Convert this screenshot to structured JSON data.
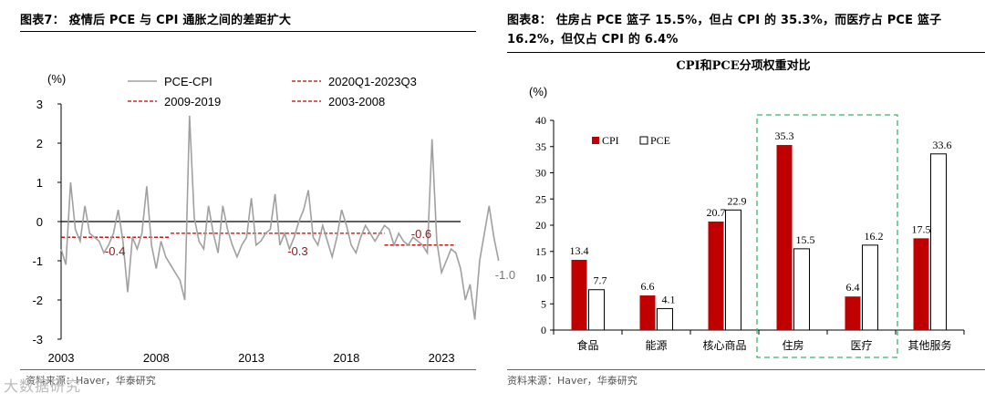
{
  "left_panel": {
    "title": "图表7：  疫情后 PCE 与 CPI 通胀之间的差距扩大",
    "source": "资料来源：Haver，华泰研究",
    "watermark": "大数据研究"
  },
  "right_panel": {
    "title": "图表8：  住房占 PCE 篮子 15.5%，但占 CPI 的 35.3%，而医疗占 PCE 篮子 16.2%，但仅占 CPI 的 6.4%",
    "source": "资料来源：Haver，华泰研究"
  },
  "colors": {
    "grey_line": "#a0a0a0",
    "red": "#c00000",
    "dash_red": "#c00000",
    "green_dash": "#3cb371"
  },
  "chart_data": [
    {
      "type": "line",
      "title": "",
      "ylabel": "(%)",
      "ylim": [
        -3,
        3
      ],
      "yticks": [
        "3",
        "2",
        "1",
        "0",
        "-1",
        "-2",
        "-3"
      ],
      "xticks": [
        "2003",
        "2008",
        "2013",
        "2018",
        "2023"
      ],
      "x_range": [
        2003.0,
        2024.0
      ],
      "legend": [
        "PCE-CPI",
        "2020Q1-2023Q3",
        "2009-2019",
        "2003-2008"
      ],
      "series": [
        {
          "name": "PCE-CPI",
          "x_start": 2003.0,
          "x_step": 0.25,
          "values": [
            -0.7,
            -1.1,
            1.0,
            -0.2,
            -0.5,
            0.4,
            -0.3,
            -0.4,
            -0.5,
            -0.8,
            -0.6,
            -0.3,
            0.3,
            -0.5,
            -1.8,
            -0.4,
            -0.7,
            -0.3,
            0.9,
            -0.6,
            -1.2,
            -0.5,
            -0.9,
            -1.1,
            -1.3,
            -1.5,
            -2.0,
            2.7,
            0.1,
            -0.5,
            -0.7,
            0.4,
            -0.3,
            -0.8,
            0.4,
            -0.2,
            -0.6,
            -0.9,
            -0.6,
            -0.4,
            0.6,
            -0.6,
            -0.5,
            -0.3,
            -0.2,
            0.7,
            -0.6,
            -0.3,
            -0.7,
            -0.4,
            0.0,
            0.3,
            0.8,
            -0.4,
            -0.6,
            -0.1,
            -0.5,
            -0.9,
            -0.4,
            0.3,
            -0.1,
            -0.6,
            -0.8,
            -0.4,
            -0.1,
            -0.3,
            -0.5,
            -0.3,
            -0.1,
            -0.2,
            -0.6,
            -0.3,
            -0.5,
            -0.6,
            -0.4,
            -0.5,
            -0.6,
            -0.8,
            2.1,
            -0.5,
            -1.3,
            -1.0,
            -0.7,
            -0.8,
            -1.2,
            -2.0,
            -1.6,
            -2.5,
            -1.0,
            -0.3,
            0.4,
            -0.4,
            -1.0
          ],
          "end_label": "-1.0"
        },
        {
          "name": "2003-2008",
          "x": [
            2003.0,
            2008.75
          ],
          "value": -0.4,
          "label": "-0.4"
        },
        {
          "name": "2009-2019",
          "x": [
            2008.75,
            2020.0
          ],
          "value": -0.3,
          "label": "-0.3"
        },
        {
          "name": "2020Q1-2023Q3",
          "x": [
            2020.0,
            2023.75
          ],
          "value": -0.6,
          "label": "-0.6"
        }
      ]
    },
    {
      "type": "bar",
      "title": "CPI和PCE分项权重对比",
      "ylabel": "(%)",
      "ylim": [
        0,
        40
      ],
      "yticks": [
        "40",
        "35",
        "30",
        "25",
        "20",
        "15",
        "10",
        "5",
        "0"
      ],
      "categories": [
        "食品",
        "能源",
        "核心商品",
        "住房",
        "医疗",
        "其他服务"
      ],
      "series": [
        {
          "name": "CPI",
          "values": [
            13.4,
            6.6,
            20.7,
            35.3,
            6.4,
            17.5
          ],
          "labels": [
            "13.4",
            "6.6",
            "20.7",
            "35.3",
            "6.4",
            "17.5"
          ]
        },
        {
          "name": "PCE",
          "values": [
            7.7,
            4.1,
            22.9,
            15.5,
            16.2,
            33.6
          ],
          "labels": [
            "7.7",
            "4.1",
            "22.9",
            "15.5",
            "16.2",
            "33.6"
          ]
        }
      ],
      "highlight": [
        "住房",
        "医疗"
      ]
    }
  ]
}
